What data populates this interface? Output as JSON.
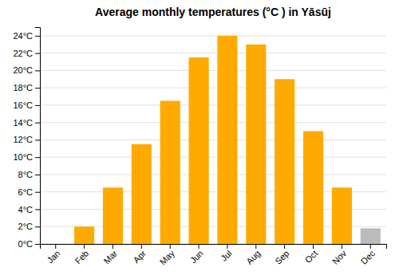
{
  "chart_data": {
    "type": "bar",
    "title": "Average monthly temperatures (°C ) in Yāsūj",
    "categories": [
      "Jan",
      "Feb",
      "Mar",
      "Apr",
      "May",
      "Jun",
      "Jul",
      "Aug",
      "Sep",
      "Oct",
      "Nov",
      "Dec"
    ],
    "values": [
      0.0,
      2.0,
      6.5,
      11.5,
      16.5,
      21.5,
      24.0,
      23.0,
      19.0,
      13.0,
      6.5,
      1.8
    ],
    "colors": [
      "#FFAA00",
      "#FFAA00",
      "#FFAA00",
      "#FFAA00",
      "#FFAA00",
      "#FFAA00",
      "#FFAA00",
      "#FFAA00",
      "#FFAA00",
      "#FFAA00",
      "#FFAA00",
      "#BBBBBB"
    ],
    "ylim": [
      0,
      25
    ],
    "yticks": [
      {
        "value": 0,
        "label": "0°C"
      },
      {
        "value": 2,
        "label": "2°C"
      },
      {
        "value": 4,
        "label": "4°C"
      },
      {
        "value": 6,
        "label": "6°C"
      },
      {
        "value": 8,
        "label": "8°C"
      },
      {
        "value": 10,
        "label": "10°C"
      },
      {
        "value": 12,
        "label": "12°C"
      },
      {
        "value": 14,
        "label": "14°C"
      },
      {
        "value": 16,
        "label": "16°C"
      },
      {
        "value": 18,
        "label": "18°C"
      },
      {
        "value": 20,
        "label": "20°C"
      },
      {
        "value": 22,
        "label": "22°C"
      },
      {
        "value": 24,
        "label": "24°C"
      }
    ],
    "grid": true
  }
}
